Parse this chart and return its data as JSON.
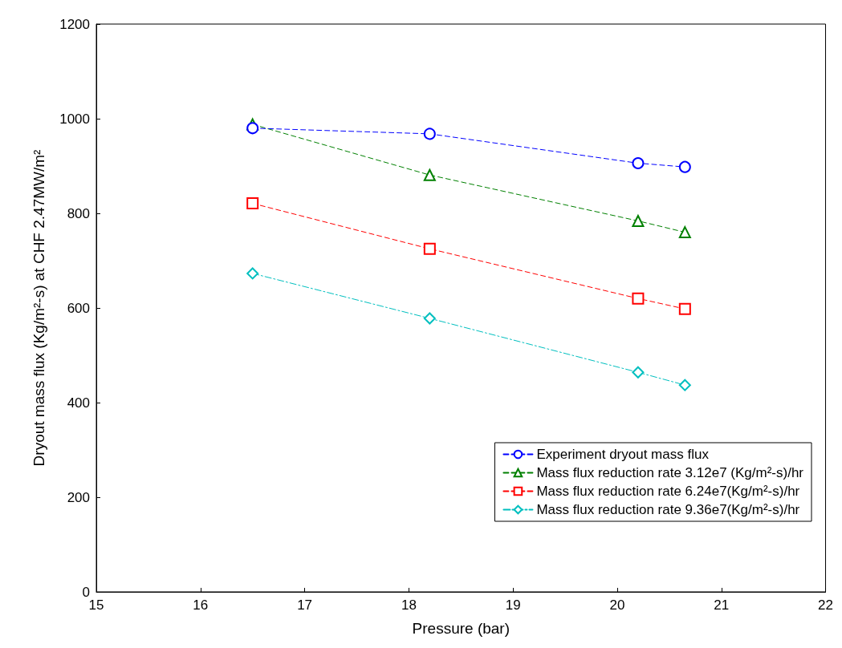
{
  "chart_data": {
    "type": "line",
    "xlabel": "Pressure (bar)",
    "ylabel": "Dryout mass flux (Kg/m²-s) at CHF 2.47MW/m²",
    "x": [
      16.5,
      18.2,
      20.2,
      20.65
    ],
    "series": [
      {
        "name": "Experiment dryout mass flux",
        "color": "#0000ff",
        "marker": "circle",
        "line_style": "dashed",
        "values": [
          980,
          968,
          906,
          898
        ]
      },
      {
        "name": "Mass flux reduction rate 3.12e7 (Kg/m²-s)/hr",
        "color": "#008000",
        "marker": "triangle",
        "line_style": "dashed",
        "values": [
          988,
          881,
          784,
          760
        ]
      },
      {
        "name": "Mass flux reduction rate 6.24e7(Kg/m²-s)/hr",
        "color": "#ff0000",
        "marker": "square",
        "line_style": "dashed",
        "values": [
          821,
          725,
          620,
          598
        ]
      },
      {
        "name": "Mass flux reduction rate 9.36e7(Kg/m²-s)/hr",
        "color": "#00bfbf",
        "marker": "diamond",
        "line_style": "dashdot",
        "values": [
          673,
          578,
          464,
          437
        ]
      }
    ],
    "xlim": [
      15,
      22
    ],
    "xticks": [
      15,
      16,
      17,
      18,
      19,
      20,
      21,
      22
    ],
    "ylim": [
      0,
      1200
    ],
    "yticks": [
      0,
      200,
      400,
      600,
      800,
      1000,
      1200
    ],
    "grid": false,
    "legend": "bottom right"
  }
}
